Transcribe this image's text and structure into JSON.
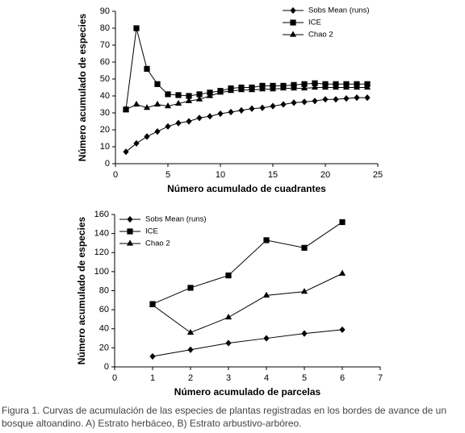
{
  "chart_data": [
    {
      "type": "line",
      "xlabel": "Número acumulado de cuadrantes",
      "ylabel": "Número acumulado de especies",
      "x": [
        1,
        2,
        3,
        4,
        5,
        6,
        7,
        8,
        9,
        10,
        11,
        12,
        13,
        14,
        15,
        16,
        17,
        18,
        19,
        20,
        21,
        22,
        23,
        24
      ],
      "xlim": [
        0,
        25
      ],
      "xticks": [
        0,
        5,
        10,
        15,
        20,
        25
      ],
      "ylim": [
        0,
        90
      ],
      "yticks": [
        0,
        10,
        20,
        30,
        40,
        50,
        60,
        70,
        80,
        90
      ],
      "legend": "upper right",
      "series": [
        {
          "name": "Sobs Mean (runs)",
          "color": "#000000",
          "marker": "diamond",
          "values": [
            7,
            12,
            16,
            19,
            22,
            24,
            25,
            27,
            28,
            29.5,
            30.5,
            31.5,
            32.5,
            33,
            34,
            35,
            36,
            36.5,
            37,
            38,
            38,
            38.5,
            39,
            39
          ]
        },
        {
          "name": "ICE",
          "color": "#000000",
          "marker": "square",
          "values": [
            32,
            80,
            56,
            47,
            41,
            40.5,
            40,
            41,
            42,
            43,
            44.5,
            45,
            45,
            46,
            46,
            46,
            46.5,
            47,
            47.5,
            47,
            47,
            47,
            47,
            47
          ]
        },
        {
          "name": "Chao 2",
          "color": "#000000",
          "marker": "triangle",
          "values": [
            32,
            35,
            33,
            35,
            34,
            35.5,
            37,
            38,
            40,
            42,
            43,
            43.5,
            43.5,
            44,
            44,
            44.5,
            44.5,
            44.5,
            45,
            45,
            45,
            45,
            45,
            45
          ]
        }
      ]
    },
    {
      "type": "line",
      "xlabel": "Número acumulado de parcelas",
      "ylabel": "Número acumulado de especies",
      "x": [
        1,
        2,
        3,
        4,
        5,
        6
      ],
      "xlim": [
        0,
        7
      ],
      "xticks": [
        0,
        1,
        2,
        3,
        4,
        5,
        6,
        7
      ],
      "ylim": [
        0,
        160
      ],
      "yticks": [
        0,
        20,
        40,
        60,
        80,
        100,
        120,
        140,
        160
      ],
      "legend": "upper left",
      "series": [
        {
          "name": "Sobs Mean (runs)",
          "color": "#000000",
          "marker": "diamond",
          "values": [
            11,
            18,
            25,
            30,
            35,
            39
          ]
        },
        {
          "name": "ICE",
          "color": "#000000",
          "marker": "square",
          "values": [
            66,
            83,
            96,
            133,
            125,
            152
          ]
        },
        {
          "name": "Chao 2",
          "color": "#000000",
          "marker": "triangle",
          "values": [
            65,
            36,
            52,
            75,
            79,
            98
          ]
        }
      ]
    }
  ],
  "caption": [
    "Figura 1. Curvas de acumulación de las especies de plantas registradas en los bordes de avance de un",
    "bosque altoandino. A) Estrato herbáceo, B) Estrato arbustivo-arbóreo."
  ]
}
